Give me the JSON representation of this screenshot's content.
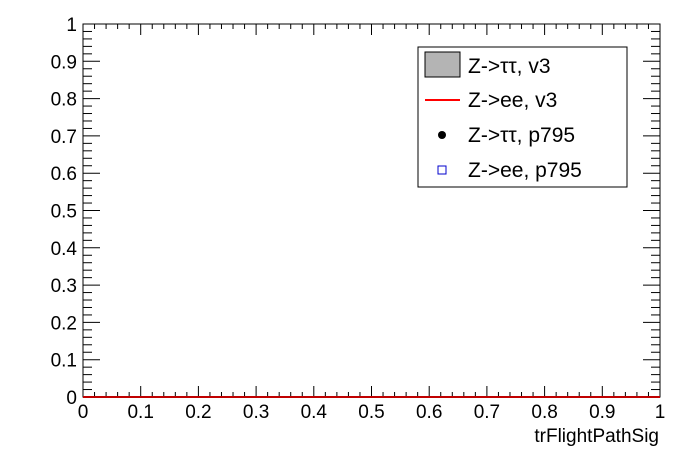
{
  "chart_data": {
    "type": "line",
    "title": "",
    "xlabel": "trFlightPathSig",
    "ylabel": "",
    "xlim": [
      0,
      1
    ],
    "ylim": [
      0,
      1
    ],
    "x_ticks": [
      "0",
      "0.1",
      "0.2",
      "0.3",
      "0.4",
      "0.5",
      "0.6",
      "0.7",
      "0.8",
      "0.9",
      "1"
    ],
    "y_ticks": [
      "0",
      "0.1",
      "0.2",
      "0.3",
      "0.4",
      "0.5",
      "0.6",
      "0.7",
      "0.8",
      "0.9",
      "1"
    ],
    "grid": false,
    "legend_position": "top-right",
    "series": [
      {
        "name": "Z->ττ, v3",
        "style": "filled-histogram",
        "color": "#b4b4b4",
        "x": [
          0,
          1
        ],
        "y": [
          0,
          0
        ]
      },
      {
        "name": "Z->ee, v3",
        "style": "line",
        "color": "#ff0000",
        "x": [
          0,
          1
        ],
        "y": [
          0,
          0
        ]
      },
      {
        "name": "Z->ττ, p795",
        "style": "marker-filled-circle",
        "color": "#000000",
        "x": [],
        "y": []
      },
      {
        "name": "Z->ee, p795",
        "style": "marker-open-square",
        "color": "#0000cc",
        "x": [],
        "y": []
      }
    ]
  }
}
